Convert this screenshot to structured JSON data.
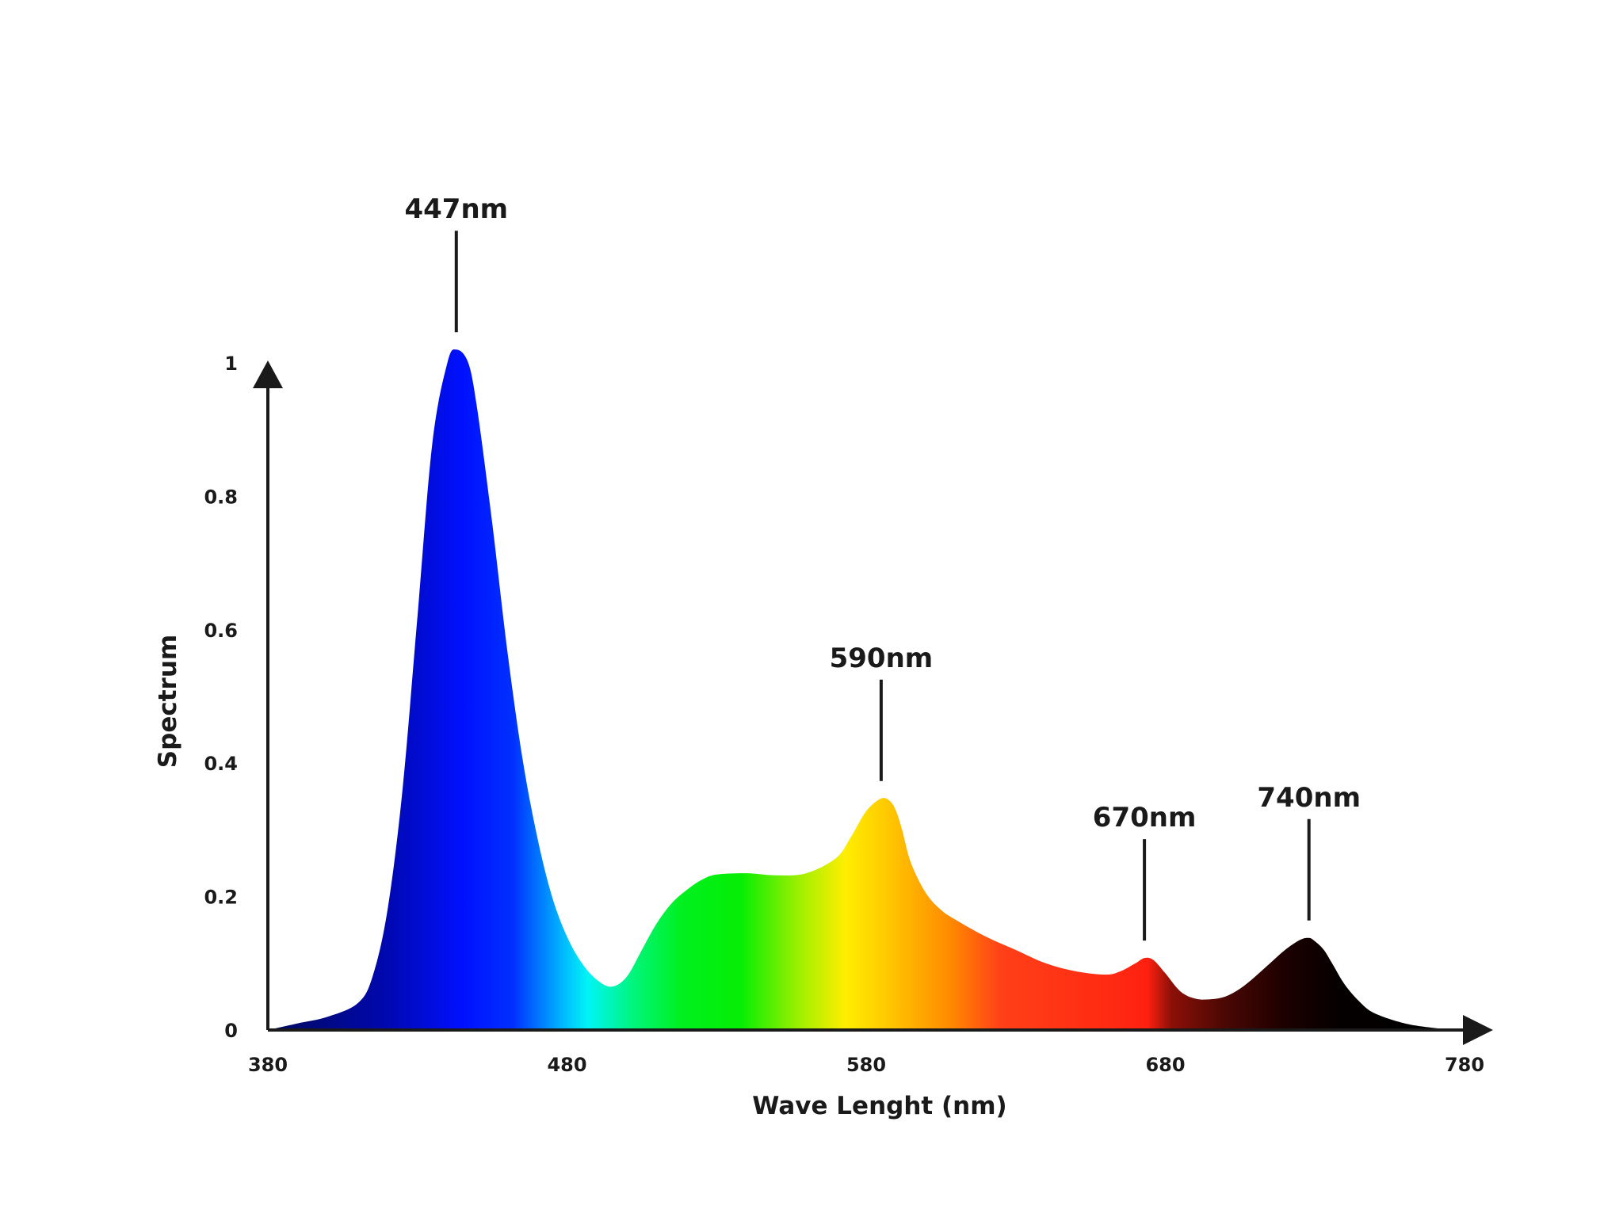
{
  "chart_data": {
    "type": "area",
    "xlabel": "Wave Lenght (nm)",
    "ylabel": "Spectrum",
    "xlim": [
      380,
      780
    ],
    "ylim": [
      0,
      1
    ],
    "x_ticks": [
      "380",
      "480",
      "580",
      "680",
      "780"
    ],
    "y_ticks": [
      "0",
      "0.2",
      "0.4",
      "0.6",
      "0.8",
      "1"
    ],
    "grid": false,
    "series": [
      {
        "x": [
          380,
          390,
          400,
          410,
          415,
          420,
          425,
          430,
          435,
          440,
          443,
          447,
          450,
          455,
          460,
          465,
          470,
          475,
          480,
          485,
          490,
          495,
          500,
          505,
          510,
          515,
          520,
          525,
          530,
          540,
          550,
          560,
          570,
          575,
          580,
          585,
          588,
          590,
          592,
          595,
          600,
          605,
          610,
          620,
          630,
          640,
          650,
          660,
          665,
          670,
          673,
          676,
          680,
          685,
          690,
          695,
          700,
          705,
          710,
          715,
          720,
          725,
          728,
          730,
          733,
          736,
          740,
          745,
          750,
          760,
          770,
          775,
          780
        ],
        "y": [
          0.0,
          0.01,
          0.02,
          0.04,
          0.08,
          0.18,
          0.36,
          0.62,
          0.88,
          1.0,
          1.02,
          1.0,
          0.93,
          0.76,
          0.57,
          0.41,
          0.29,
          0.2,
          0.14,
          0.1,
          0.075,
          0.065,
          0.08,
          0.12,
          0.16,
          0.19,
          0.21,
          0.225,
          0.233,
          0.235,
          0.232,
          0.235,
          0.258,
          0.29,
          0.328,
          0.347,
          0.343,
          0.328,
          0.3,
          0.25,
          0.205,
          0.18,
          0.165,
          0.14,
          0.12,
          0.1,
          0.088,
          0.083,
          0.088,
          0.1,
          0.108,
          0.105,
          0.085,
          0.058,
          0.047,
          0.046,
          0.05,
          0.062,
          0.08,
          0.1,
          0.12,
          0.135,
          0.138,
          0.133,
          0.12,
          0.098,
          0.068,
          0.042,
          0.025,
          0.01,
          0.003,
          0.001,
          0.0
        ]
      }
    ],
    "annotations": [
      {
        "label": "447nm",
        "x": 447
      },
      {
        "label": "590nm",
        "x": 590
      },
      {
        "label": "670nm",
        "x": 670
      },
      {
        "label": "740nm",
        "x": 740
      }
    ],
    "gradient_stops": [
      {
        "x": 380,
        "color": "#000a5a"
      },
      {
        "x": 420,
        "color": "#0008b0"
      },
      {
        "x": 445,
        "color": "#0010ff"
      },
      {
        "x": 462,
        "color": "#0030ff"
      },
      {
        "x": 478,
        "color": "#00b4ff"
      },
      {
        "x": 487,
        "color": "#00f5f5"
      },
      {
        "x": 503,
        "color": "#00f575"
      },
      {
        "x": 518,
        "color": "#00f020"
      },
      {
        "x": 538,
        "color": "#05ee05"
      },
      {
        "x": 558,
        "color": "#a2ef00"
      },
      {
        "x": 573,
        "color": "#ffee00"
      },
      {
        "x": 590,
        "color": "#ffc000"
      },
      {
        "x": 608,
        "color": "#ff8a00"
      },
      {
        "x": 625,
        "color": "#ff4018"
      },
      {
        "x": 662,
        "color": "#ff2a12"
      },
      {
        "x": 674,
        "color": "#ff2010"
      },
      {
        "x": 682,
        "color": "#8c1008"
      },
      {
        "x": 700,
        "color": "#4a0804"
      },
      {
        "x": 720,
        "color": "#1c0000"
      },
      {
        "x": 738,
        "color": "#050000"
      },
      {
        "x": 780,
        "color": "#000000"
      }
    ],
    "axis_color": "#1a1a1a"
  }
}
